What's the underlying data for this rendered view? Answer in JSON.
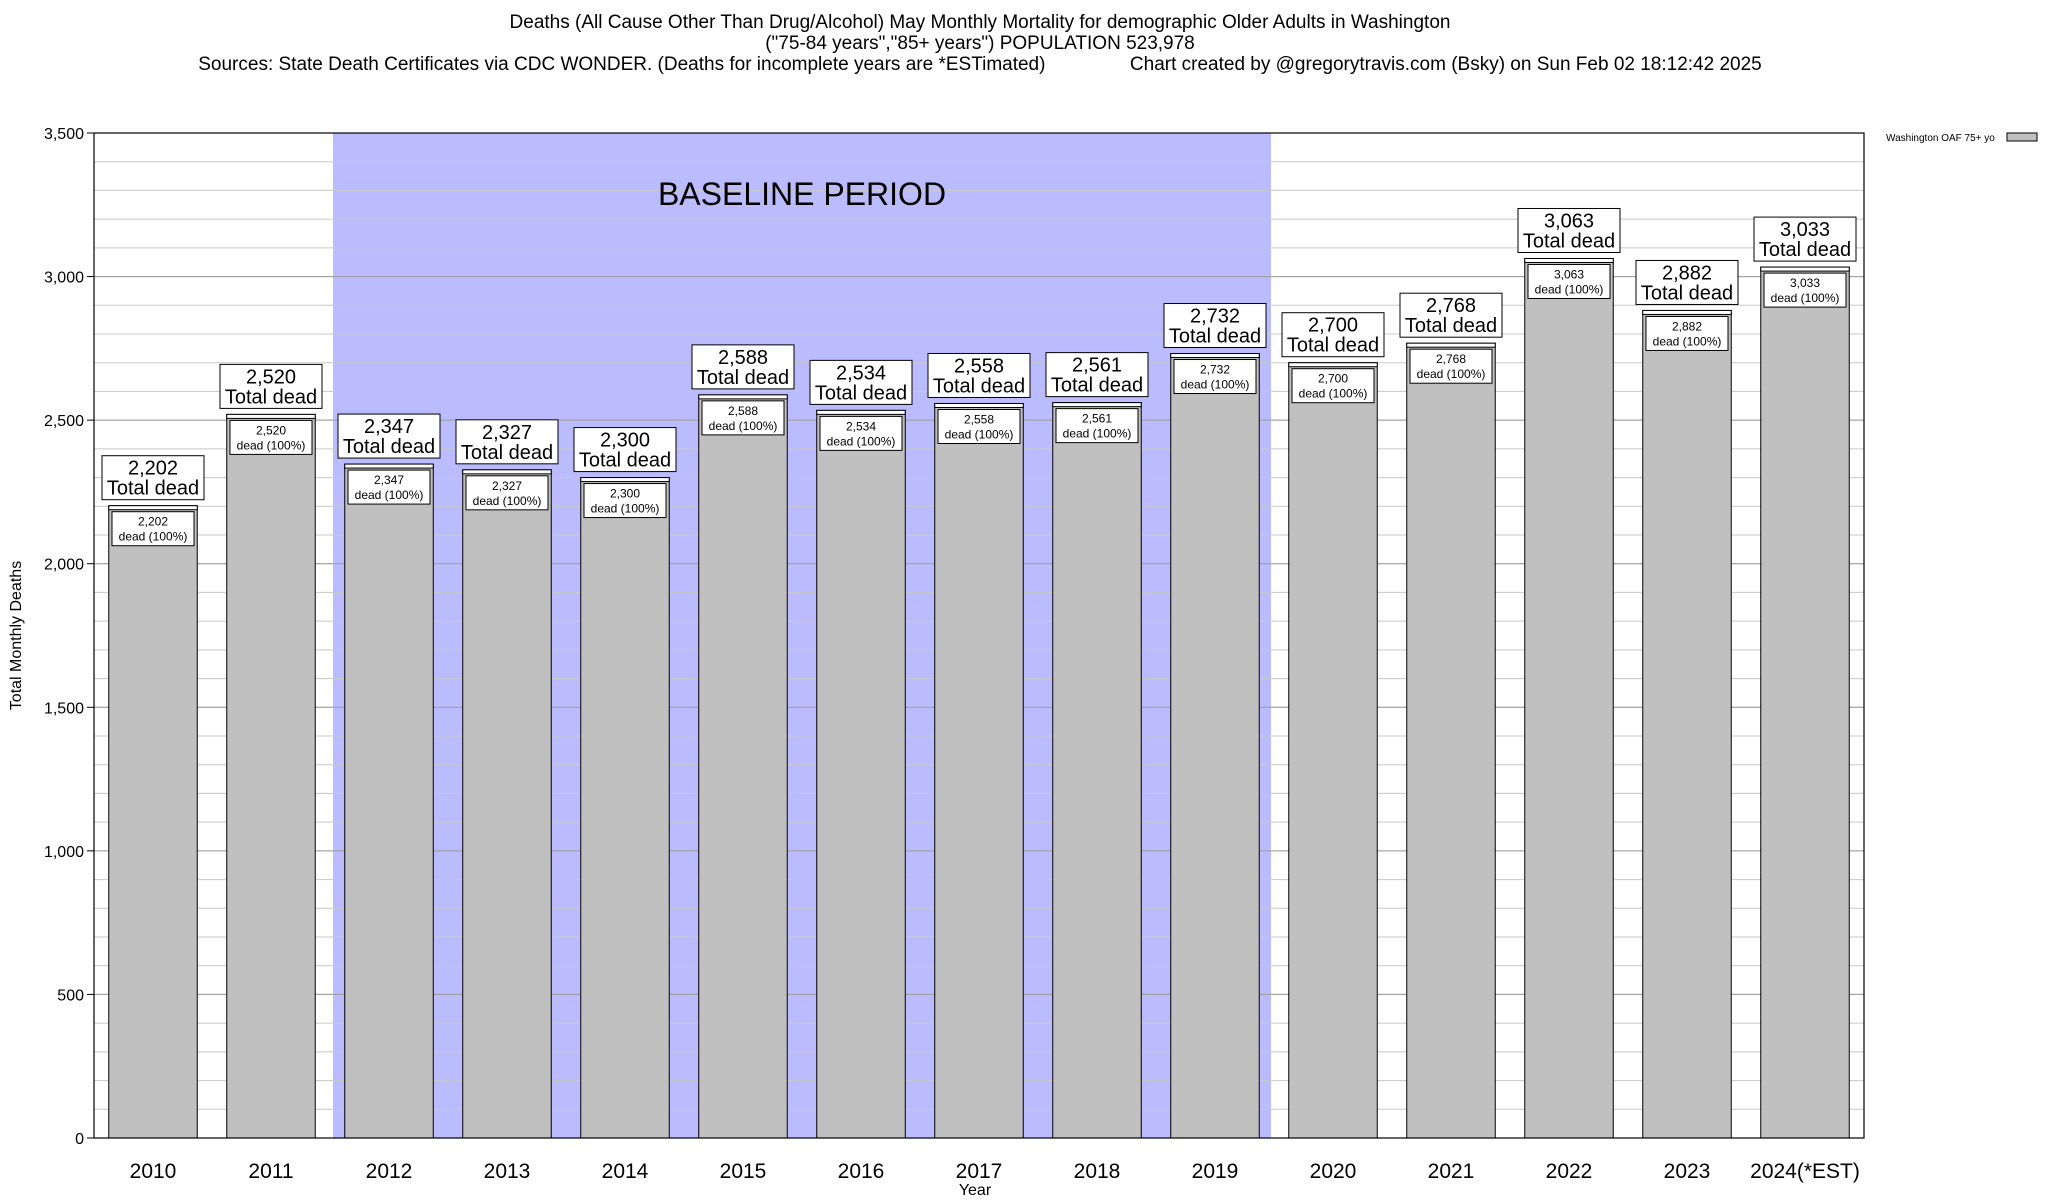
{
  "header": {
    "line1": "Deaths (All Cause Other Than Drug/Alcohol) May Monthly Mortality for demographic Older Adults in Washington",
    "line2": "(\"75-84 years\",\"85+ years\") POPULATION 523,978",
    "line3": "Sources: State Death Certificates via CDC WONDER. (Deaths for incomplete years are *ESTimated)                Chart created by @gregorytravis.com (Bsky) on Sun Feb 02 18:12:42 2025"
  },
  "chart_data": {
    "type": "bar",
    "categories": [
      "2010",
      "2011",
      "2012",
      "2013",
      "2014",
      "2015",
      "2016",
      "2017",
      "2018",
      "2019",
      "2020",
      "2021",
      "2022",
      "2023",
      "2024(*EST)"
    ],
    "series": [
      {
        "name": "Washington OAF 75+ yo",
        "values": [
          2202,
          2520,
          2347,
          2327,
          2300,
          2588,
          2534,
          2558,
          2561,
          2732,
          2700,
          2768,
          3063,
          2882,
          3033
        ]
      }
    ],
    "bar_value_labels": [
      "2,202",
      "2,520",
      "2,347",
      "2,327",
      "2,300",
      "2,588",
      "2,534",
      "2,558",
      "2,561",
      "2,732",
      "2,700",
      "2,768",
      "3,063",
      "2,882",
      "3,033"
    ],
    "total_label_suffix": "Total dead",
    "inner_label_suffix": "dead (100%)",
    "xlabel": "Year",
    "ylabel": "Total Monthly Deaths",
    "ylim": [
      0,
      3500
    ],
    "yticks": [
      0,
      500,
      1000,
      1500,
      2000,
      2500,
      3000,
      3500
    ],
    "ytick_labels": [
      "0",
      "500",
      "1,000",
      "1,500",
      "2,000",
      "2,500",
      "3,000",
      "3,500"
    ],
    "grid": true,
    "legend_position": "top-right",
    "baseline_period": {
      "label": "BASELINE PERIOD",
      "from": "2012",
      "to": "2019"
    },
    "colors": {
      "bar": "#c0c0c0",
      "baseline_band": "#bbbbff",
      "grid": "#c8c8c8"
    }
  }
}
